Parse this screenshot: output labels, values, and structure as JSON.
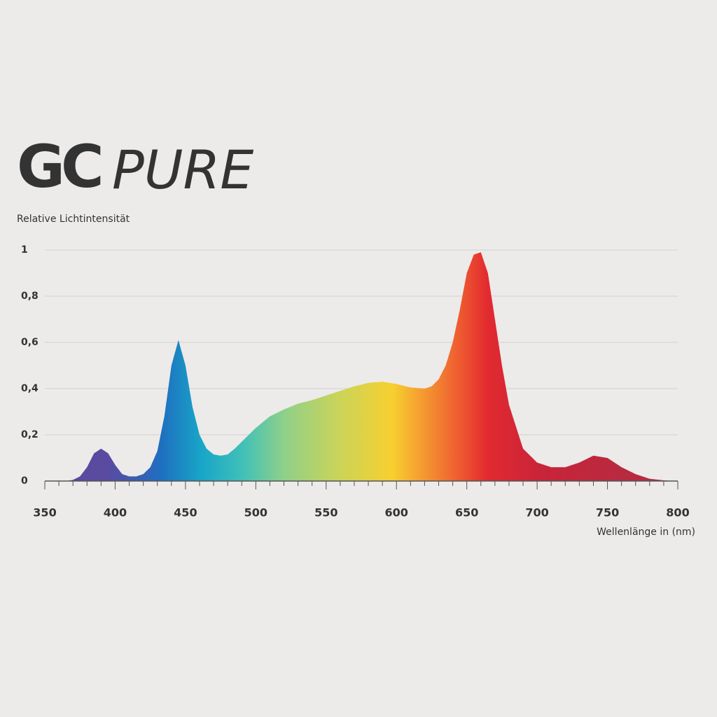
{
  "chart_data": {
    "type": "area",
    "brand": "GC",
    "title": "PURE",
    "y_label": "Relative Lichtintensität",
    "x_label": "Wellenlänge in (nm)",
    "x": [
      365,
      370,
      375,
      380,
      385,
      390,
      395,
      400,
      405,
      410,
      415,
      420,
      425,
      430,
      435,
      440,
      445,
      450,
      455,
      460,
      465,
      470,
      475,
      480,
      485,
      490,
      495,
      500,
      510,
      520,
      530,
      540,
      550,
      560,
      570,
      580,
      590,
      600,
      610,
      620,
      625,
      630,
      635,
      640,
      645,
      650,
      655,
      660,
      665,
      670,
      675,
      680,
      690,
      700,
      710,
      720,
      730,
      740,
      750,
      760,
      770,
      780,
      790,
      800
    ],
    "values": [
      0,
      0.005,
      0.02,
      0.06,
      0.12,
      0.14,
      0.12,
      0.07,
      0.03,
      0.02,
      0.02,
      0.03,
      0.06,
      0.13,
      0.28,
      0.5,
      0.61,
      0.5,
      0.32,
      0.2,
      0.14,
      0.115,
      0.11,
      0.115,
      0.14,
      0.17,
      0.2,
      0.23,
      0.28,
      0.31,
      0.335,
      0.35,
      0.37,
      0.39,
      0.41,
      0.425,
      0.43,
      0.42,
      0.405,
      0.4,
      0.41,
      0.44,
      0.5,
      0.6,
      0.74,
      0.9,
      0.98,
      0.99,
      0.9,
      0.7,
      0.5,
      0.33,
      0.14,
      0.08,
      0.06,
      0.06,
      0.08,
      0.11,
      0.1,
      0.06,
      0.03,
      0.01,
      0.003,
      0
    ],
    "xlim": [
      350,
      800
    ],
    "xticks": [
      350,
      400,
      450,
      500,
      550,
      600,
      650,
      700,
      750,
      800
    ],
    "xminorticks": [
      360,
      370,
      380,
      390,
      410,
      420,
      430,
      440,
      460,
      470,
      480,
      490,
      510,
      520,
      530,
      540,
      560,
      570,
      580,
      590,
      610,
      620,
      630,
      640,
      660,
      670,
      680,
      690,
      710,
      720,
      730,
      740,
      760,
      770,
      780,
      790
    ],
    "ylim": [
      0,
      1
    ],
    "yticks": [
      0,
      {
        "value": 0.2,
        "label": "0,2"
      },
      {
        "value": 0.4,
        "label": "0,4"
      },
      {
        "value": 0.6,
        "label": "0,6"
      },
      {
        "value": 0.8,
        "label": "0,8"
      },
      1
    ],
    "grid": true
  }
}
